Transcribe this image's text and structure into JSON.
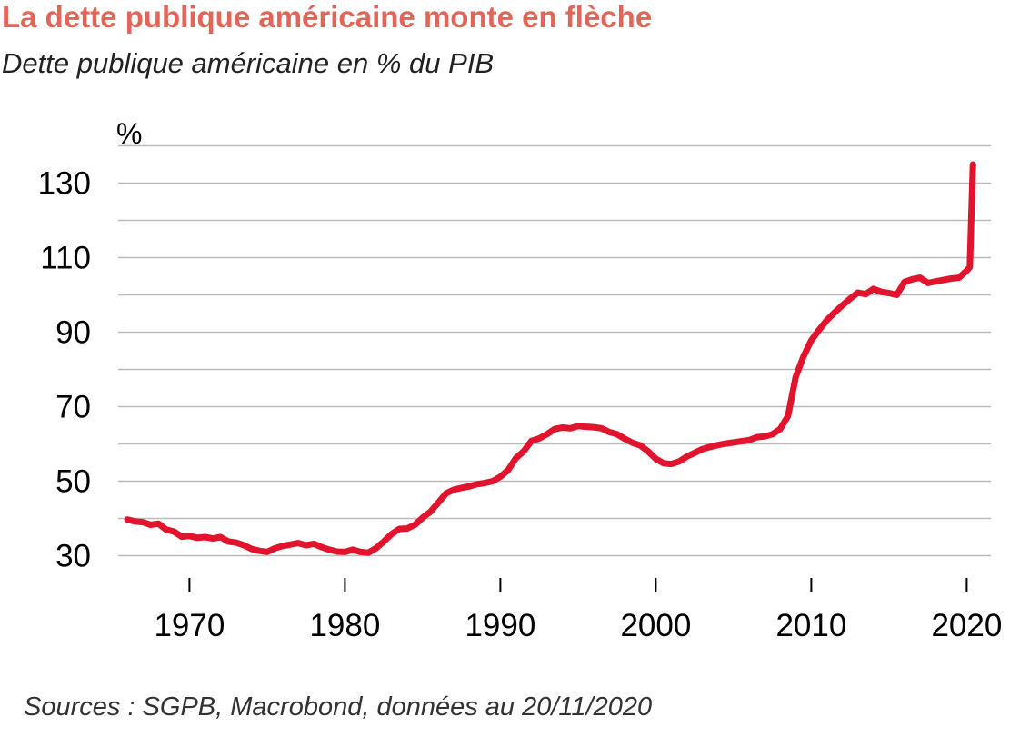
{
  "title": "La dette publique américaine monte en flèche",
  "subtitle": "Dette publique américaine en % du PIB",
  "source": "Sources : SGPB, Macrobond, données au 20/11/2020",
  "colors": {
    "title": "#e0665a",
    "line": "#e2142d",
    "grid": "#bbbbbb"
  },
  "chart_data": {
    "type": "line",
    "title": "Dette publique américaine en % du PIB",
    "xlabel": "",
    "ylabel": "%",
    "xlim": [
      1966,
      2020.6
    ],
    "ylim": [
      23,
      145
    ],
    "grid": true,
    "y_ticks": [
      30,
      50,
      70,
      90,
      110,
      130
    ],
    "x_ticks": [
      1970,
      1980,
      1990,
      2000,
      2010,
      2020
    ],
    "series": [
      {
        "values_x": [
          1966.0,
          1966.5,
          1967.0,
          1967.5,
          1968.0,
          1968.5,
          1969.0,
          1969.5,
          1970.0,
          1970.5,
          1971.0,
          1971.5,
          1972.0,
          1972.5,
          1973.0,
          1973.5,
          1974.0,
          1974.5,
          1975.0,
          1975.5,
          1976.0,
          1976.5,
          1977.0,
          1977.5,
          1978.0,
          1978.5,
          1979.0,
          1979.5,
          1980.0,
          1980.5,
          1981.0,
          1981.5,
          1982.0,
          1982.5,
          1983.0,
          1983.5,
          1984.0,
          1984.5,
          1985.0,
          1985.5,
          1986.0,
          1986.5,
          1987.0,
          1987.5,
          1988.0,
          1988.5,
          1989.0,
          1989.5,
          1990.0,
          1990.5,
          1991.0,
          1991.5,
          1992.0,
          1992.5,
          1993.0,
          1993.5,
          1994.0,
          1994.5,
          1995.0,
          1995.5,
          1996.0,
          1996.5,
          1997.0,
          1997.5,
          1998.0,
          1998.5,
          1999.0,
          1999.5,
          2000.0,
          2000.5,
          2001.0,
          2001.5,
          2002.0,
          2002.5,
          2003.0,
          2003.5,
          2004.0,
          2004.5,
          2005.0,
          2005.5,
          2006.0,
          2006.5,
          2007.0,
          2007.5,
          2008.0,
          2008.5,
          2009.0,
          2009.5,
          2010.0,
          2010.5,
          2011.0,
          2011.5,
          2012.0,
          2012.5,
          2013.0,
          2013.5,
          2014.0,
          2014.5,
          2015.0,
          2015.5,
          2016.0,
          2016.5,
          2017.0,
          2017.5,
          2018.0,
          2018.5,
          2019.0,
          2019.5,
          2020.0,
          2020.2,
          2020.4
        ],
        "values_y": [
          39.7,
          39.2,
          39.0,
          38.3,
          38.6,
          37.0,
          36.5,
          35.1,
          35.3,
          34.8,
          35.0,
          34.6,
          35.0,
          33.8,
          33.5,
          32.8,
          31.8,
          31.3,
          31.0,
          32.0,
          32.6,
          33.0,
          33.4,
          32.8,
          33.2,
          32.3,
          31.6,
          31.1,
          31.0,
          31.6,
          31.0,
          30.8,
          32.0,
          33.8,
          35.8,
          37.2,
          37.3,
          38.3,
          40.2,
          41.8,
          44.2,
          46.7,
          47.7,
          48.2,
          48.6,
          49.2,
          49.5,
          50.0,
          51.2,
          53.0,
          56.2,
          58.0,
          60.8,
          61.5,
          62.6,
          64.0,
          64.4,
          64.2,
          64.8,
          64.6,
          64.5,
          64.2,
          63.2,
          62.6,
          61.4,
          60.3,
          59.6,
          58.0,
          56.0,
          54.8,
          54.6,
          55.3,
          56.6,
          57.6,
          58.6,
          59.2,
          59.7,
          60.1,
          60.4,
          60.7,
          61.0,
          61.8,
          62.0,
          62.6,
          64.0,
          67.5,
          78.0,
          83.5,
          87.8,
          90.6,
          93.2,
          95.3,
          97.2,
          99.0,
          100.6,
          100.2,
          101.6,
          100.8,
          100.5,
          100.0,
          103.5,
          104.2,
          104.6,
          103.2,
          103.6,
          104.0,
          104.4,
          104.6,
          106.5,
          107.5,
          135.0
        ]
      }
    ]
  }
}
